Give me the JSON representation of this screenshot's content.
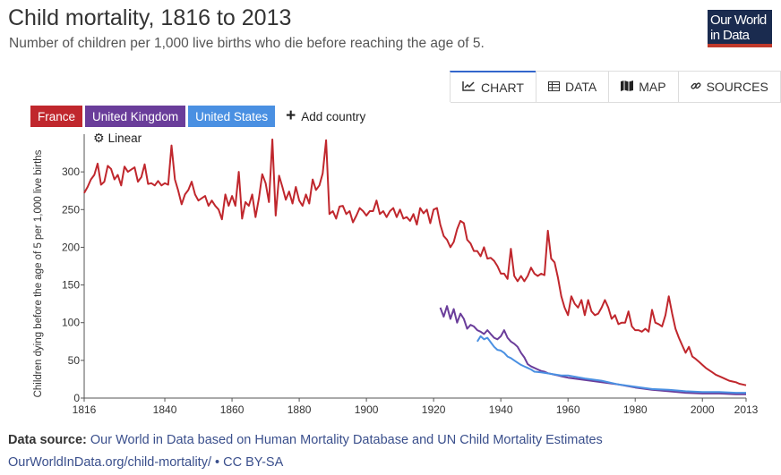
{
  "header": {
    "title": "Child mortality, 1816 to 2013",
    "subtitle": "Number of children per 1,000 live births who die before reaching the age of 5.",
    "logo_line1": "Our World",
    "logo_line2": "in Data"
  },
  "tabs": [
    {
      "label": "CHART",
      "icon": "line-chart-icon",
      "active": true
    },
    {
      "label": "DATA",
      "icon": "table-icon",
      "active": false
    },
    {
      "label": "MAP",
      "icon": "map-icon",
      "active": false
    },
    {
      "label": "SOURCES",
      "icon": "link-icon",
      "active": false
    }
  ],
  "controls": {
    "countries": [
      {
        "label": "France",
        "color": "#c0272d"
      },
      {
        "label": "United Kingdom",
        "color": "#6a3d9a"
      },
      {
        "label": "United States",
        "color": "#4a90e2"
      }
    ],
    "add_country": "Add country",
    "scale": "Linear"
  },
  "footer": {
    "source_label": "Data source:",
    "source_text": "Our World in Data based on Human Mortality Database and UN Child Mortality Estimates",
    "link": "OurWorldInData.org/child-mortality/",
    "separator": "•",
    "license": "CC BY-SA"
  },
  "chart_data": {
    "type": "line",
    "title": "Child mortality, 1816 to 2013",
    "xlabel": "",
    "ylabel": "Children dying before the age of 5 per 1,000 live births",
    "xlim": [
      1816,
      2013
    ],
    "ylim": [
      0,
      350
    ],
    "xticks": [
      1816,
      1840,
      1860,
      1880,
      1900,
      1920,
      1940,
      1960,
      1980,
      2000,
      2013
    ],
    "yticks": [
      0,
      50,
      100,
      150,
      200,
      250,
      300
    ],
    "grid": false,
    "series": [
      {
        "name": "France",
        "color": "#c0272d",
        "points": [
          [
            1816,
            272
          ],
          [
            1817,
            280
          ],
          [
            1818,
            290
          ],
          [
            1819,
            296
          ],
          [
            1820,
            311
          ],
          [
            1821,
            283
          ],
          [
            1822,
            287
          ],
          [
            1823,
            308
          ],
          [
            1824,
            304
          ],
          [
            1825,
            290
          ],
          [
            1826,
            296
          ],
          [
            1827,
            282
          ],
          [
            1828,
            307
          ],
          [
            1829,
            300
          ],
          [
            1830,
            303
          ],
          [
            1831,
            306
          ],
          [
            1832,
            287
          ],
          [
            1833,
            293
          ],
          [
            1834,
            310
          ],
          [
            1835,
            284
          ],
          [
            1836,
            285
          ],
          [
            1837,
            282
          ],
          [
            1838,
            288
          ],
          [
            1839,
            282
          ],
          [
            1840,
            285
          ],
          [
            1841,
            283
          ],
          [
            1842,
            335
          ],
          [
            1843,
            290
          ],
          [
            1844,
            275
          ],
          [
            1845,
            257
          ],
          [
            1846,
            270
          ],
          [
            1847,
            276
          ],
          [
            1848,
            287
          ],
          [
            1849,
            270
          ],
          [
            1850,
            262
          ],
          [
            1851,
            265
          ],
          [
            1852,
            268
          ],
          [
            1853,
            255
          ],
          [
            1854,
            262
          ],
          [
            1855,
            255
          ],
          [
            1856,
            250
          ],
          [
            1857,
            237
          ],
          [
            1858,
            270
          ],
          [
            1859,
            255
          ],
          [
            1860,
            268
          ],
          [
            1861,
            255
          ],
          [
            1862,
            300
          ],
          [
            1863,
            238
          ],
          [
            1864,
            260
          ],
          [
            1865,
            255
          ],
          [
            1866,
            270
          ],
          [
            1867,
            240
          ],
          [
            1868,
            265
          ],
          [
            1869,
            297
          ],
          [
            1870,
            285
          ],
          [
            1871,
            260
          ],
          [
            1872,
            343
          ],
          [
            1873,
            242
          ],
          [
            1874,
            295
          ],
          [
            1875,
            280
          ],
          [
            1876,
            263
          ],
          [
            1877,
            274
          ],
          [
            1878,
            258
          ],
          [
            1879,
            280
          ],
          [
            1880,
            262
          ],
          [
            1881,
            255
          ],
          [
            1882,
            270
          ],
          [
            1883,
            258
          ],
          [
            1884,
            290
          ],
          [
            1885,
            276
          ],
          [
            1886,
            282
          ],
          [
            1887,
            298
          ],
          [
            1888,
            342
          ],
          [
            1889,
            244
          ],
          [
            1890,
            248
          ],
          [
            1891,
            238
          ],
          [
            1892,
            254
          ],
          [
            1893,
            255
          ],
          [
            1894,
            244
          ],
          [
            1895,
            248
          ],
          [
            1896,
            233
          ],
          [
            1897,
            242
          ],
          [
            1898,
            252
          ],
          [
            1899,
            248
          ],
          [
            1900,
            242
          ],
          [
            1901,
            248
          ],
          [
            1902,
            248
          ],
          [
            1903,
            262
          ],
          [
            1904,
            244
          ],
          [
            1905,
            248
          ],
          [
            1906,
            240
          ],
          [
            1907,
            248
          ],
          [
            1908,
            252
          ],
          [
            1909,
            240
          ],
          [
            1910,
            250
          ],
          [
            1911,
            238
          ],
          [
            1912,
            240
          ],
          [
            1913,
            235
          ],
          [
            1914,
            244
          ],
          [
            1915,
            230
          ],
          [
            1916,
            252
          ],
          [
            1917,
            245
          ],
          [
            1918,
            250
          ],
          [
            1919,
            232
          ],
          [
            1920,
            250
          ],
          [
            1921,
            252
          ],
          [
            1922,
            230
          ],
          [
            1923,
            215
          ],
          [
            1924,
            210
          ],
          [
            1925,
            200
          ],
          [
            1926,
            207
          ],
          [
            1927,
            224
          ],
          [
            1928,
            235
          ],
          [
            1929,
            232
          ],
          [
            1930,
            210
          ],
          [
            1931,
            205
          ],
          [
            1932,
            195
          ],
          [
            1933,
            195
          ],
          [
            1934,
            188
          ],
          [
            1935,
            200
          ],
          [
            1936,
            185
          ],
          [
            1937,
            186
          ],
          [
            1938,
            182
          ],
          [
            1939,
            175
          ],
          [
            1940,
            165
          ],
          [
            1941,
            165
          ],
          [
            1942,
            158
          ],
          [
            1943,
            198
          ],
          [
            1944,
            162
          ],
          [
            1945,
            155
          ],
          [
            1946,
            162
          ],
          [
            1947,
            155
          ],
          [
            1948,
            162
          ],
          [
            1949,
            173
          ],
          [
            1950,
            165
          ],
          [
            1951,
            162
          ],
          [
            1952,
            165
          ],
          [
            1953,
            163
          ],
          [
            1954,
            222
          ],
          [
            1955,
            185
          ],
          [
            1956,
            180
          ],
          [
            1957,
            160
          ],
          [
            1958,
            135
          ],
          [
            1959,
            120
          ],
          [
            1960,
            110
          ],
          [
            1961,
            135
          ],
          [
            1962,
            125
          ],
          [
            1963,
            120
          ],
          [
            1964,
            130
          ],
          [
            1965,
            110
          ],
          [
            1966,
            130
          ],
          [
            1967,
            115
          ],
          [
            1968,
            110
          ],
          [
            1969,
            112
          ],
          [
            1970,
            120
          ],
          [
            1971,
            130
          ],
          [
            1972,
            120
          ],
          [
            1973,
            105
          ],
          [
            1974,
            110
          ],
          [
            1975,
            98
          ],
          [
            1976,
            100
          ],
          [
            1977,
            100
          ],
          [
            1978,
            115
          ],
          [
            1979,
            95
          ],
          [
            1980,
            90
          ],
          [
            1981,
            90
          ],
          [
            1982,
            88
          ],
          [
            1983,
            92
          ],
          [
            1984,
            88
          ],
          [
            1985,
            117
          ],
          [
            1986,
            100
          ],
          [
            1987,
            98
          ],
          [
            1988,
            95
          ],
          [
            1989,
            110
          ],
          [
            1990,
            135
          ],
          [
            1991,
            112
          ],
          [
            1992,
            92
          ],
          [
            1993,
            80
          ],
          [
            1994,
            70
          ],
          [
            1995,
            60
          ],
          [
            1996,
            68
          ],
          [
            1997,
            55
          ],
          [
            1998,
            52
          ],
          [
            1999,
            48
          ],
          [
            2000,
            44
          ],
          [
            2001,
            40
          ],
          [
            2002,
            37
          ],
          [
            2003,
            34
          ],
          [
            2004,
            31
          ],
          [
            2005,
            29
          ],
          [
            2006,
            27
          ],
          [
            2007,
            25
          ],
          [
            2008,
            23
          ],
          [
            2009,
            22
          ],
          [
            2010,
            21
          ],
          [
            2011,
            19
          ],
          [
            2012,
            18
          ],
          [
            2013,
            17
          ]
        ]
      },
      {
        "name": "United Kingdom",
        "color": "#6a3d9a",
        "points": [
          [
            1922,
            120
          ],
          [
            1923,
            108
          ],
          [
            1924,
            122
          ],
          [
            1925,
            105
          ],
          [
            1926,
            118
          ],
          [
            1927,
            100
          ],
          [
            1928,
            112
          ],
          [
            1929,
            105
          ],
          [
            1930,
            92
          ],
          [
            1931,
            97
          ],
          [
            1932,
            95
          ],
          [
            1933,
            90
          ],
          [
            1934,
            88
          ],
          [
            1935,
            85
          ],
          [
            1936,
            90
          ],
          [
            1937,
            85
          ],
          [
            1938,
            80
          ],
          [
            1939,
            78
          ],
          [
            1940,
            82
          ],
          [
            1941,
            90
          ],
          [
            1942,
            80
          ],
          [
            1943,
            75
          ],
          [
            1944,
            72
          ],
          [
            1945,
            68
          ],
          [
            1946,
            60
          ],
          [
            1947,
            54
          ],
          [
            1948,
            45
          ],
          [
            1949,
            42
          ],
          [
            1950,
            40
          ],
          [
            1951,
            38
          ],
          [
            1952,
            36
          ],
          [
            1953,
            35
          ],
          [
            1954,
            33
          ],
          [
            1955,
            32
          ],
          [
            1956,
            31
          ],
          [
            1957,
            30
          ],
          [
            1958,
            29
          ],
          [
            1959,
            28
          ],
          [
            1960,
            27
          ],
          [
            1965,
            24
          ],
          [
            1970,
            21
          ],
          [
            1975,
            18
          ],
          [
            1980,
            14
          ],
          [
            1985,
            11
          ],
          [
            1990,
            9
          ],
          [
            1995,
            7
          ],
          [
            2000,
            6
          ],
          [
            2005,
            6
          ],
          [
            2010,
            5
          ],
          [
            2013,
            5
          ]
        ]
      },
      {
        "name": "United States",
        "color": "#4a90e2",
        "points": [
          [
            1933,
            75
          ],
          [
            1934,
            82
          ],
          [
            1935,
            78
          ],
          [
            1936,
            80
          ],
          [
            1937,
            74
          ],
          [
            1938,
            68
          ],
          [
            1939,
            64
          ],
          [
            1940,
            63
          ],
          [
            1941,
            60
          ],
          [
            1942,
            55
          ],
          [
            1943,
            53
          ],
          [
            1944,
            50
          ],
          [
            1945,
            47
          ],
          [
            1946,
            44
          ],
          [
            1947,
            42
          ],
          [
            1948,
            40
          ],
          [
            1949,
            38
          ],
          [
            1950,
            35
          ],
          [
            1952,
            34
          ],
          [
            1955,
            32
          ],
          [
            1958,
            30
          ],
          [
            1960,
            30
          ],
          [
            1965,
            26
          ],
          [
            1970,
            23
          ],
          [
            1975,
            18
          ],
          [
            1980,
            15
          ],
          [
            1985,
            12
          ],
          [
            1990,
            11
          ],
          [
            1995,
            9
          ],
          [
            2000,
            8
          ],
          [
            2005,
            8
          ],
          [
            2010,
            7
          ],
          [
            2013,
            7
          ]
        ]
      }
    ]
  }
}
